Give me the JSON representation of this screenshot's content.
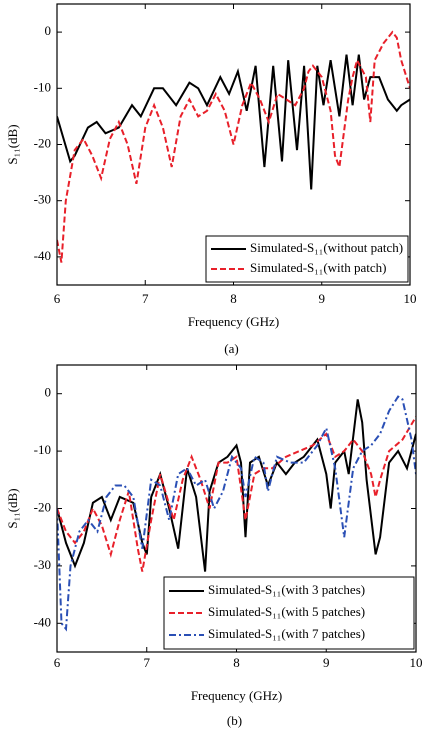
{
  "chart_data": [
    {
      "type": "line",
      "caption": "(a)",
      "xlabel": "Frequency (GHz)",
      "ylabel": "S₁₁(dB)",
      "xlim": [
        6,
        10
      ],
      "ylim": [
        -45,
        5
      ],
      "xticks": [
        6,
        7,
        8,
        9,
        10
      ],
      "yticks": [
        -40,
        -30,
        -20,
        -10,
        0
      ],
      "legend": "lower right",
      "series": [
        {
          "name": "Simulated-S₁₁(without patch)",
          "color": "#000000",
          "linestyle": "solid",
          "x": [
            6.0,
            6.15,
            6.2,
            6.35,
            6.45,
            6.55,
            6.7,
            6.85,
            6.95,
            7.1,
            7.2,
            7.35,
            7.5,
            7.6,
            7.7,
            7.85,
            7.95,
            8.05,
            8.15,
            8.25,
            8.35,
            8.45,
            8.55,
            8.62,
            8.72,
            8.8,
            8.88,
            8.95,
            9.02,
            9.1,
            9.2,
            9.28,
            9.35,
            9.42,
            9.48,
            9.55,
            9.65,
            9.75,
            9.85,
            9.9,
            10.0
          ],
          "values": [
            -15,
            -23,
            -22,
            -17,
            -16,
            -18,
            -17,
            -13,
            -15,
            -10,
            -10,
            -13,
            -9,
            -10,
            -13,
            -8,
            -11,
            -7,
            -14,
            -6,
            -24,
            -6,
            -23,
            -5,
            -21,
            -6,
            -28,
            -6,
            -13,
            -5,
            -15,
            -4,
            -13,
            -4,
            -12,
            -8,
            -8,
            -12,
            -14,
            -13,
            -12
          ]
        },
        {
          "name": "Simulated-S₁₁(with patch)",
          "color": "#e8202a",
          "linestyle": "dashed",
          "x": [
            6.0,
            6.05,
            6.1,
            6.2,
            6.3,
            6.4,
            6.5,
            6.6,
            6.7,
            6.8,
            6.9,
            7.0,
            7.1,
            7.2,
            7.3,
            7.4,
            7.5,
            7.6,
            7.7,
            7.8,
            7.9,
            8.0,
            8.1,
            8.2,
            8.3,
            8.4,
            8.5,
            8.6,
            8.7,
            8.8,
            8.85,
            8.9,
            8.95,
            9.0,
            9.05,
            9.1,
            9.15,
            9.2,
            9.3,
            9.35,
            9.4,
            9.5,
            9.55,
            9.6,
            9.7,
            9.8,
            9.85,
            9.9,
            10.0
          ],
          "values": [
            -37,
            -41,
            -30,
            -21,
            -19,
            -22,
            -26,
            -19,
            -16,
            -20,
            -27,
            -17,
            -13,
            -17,
            -24,
            -15,
            -12,
            -15,
            -14,
            -11,
            -14,
            -20,
            -13,
            -9,
            -12,
            -16,
            -11,
            -12,
            -13,
            -10,
            -7,
            -6,
            -7,
            -8,
            -11,
            -14,
            -22,
            -24,
            -12,
            -8,
            -5,
            -8,
            -16,
            -5,
            -2,
            0,
            -1,
            -5,
            -10
          ]
        }
      ]
    },
    {
      "type": "line",
      "caption": "(b)",
      "xlabel": "Frequency (GHz)",
      "ylabel": "S₁₁(dB)",
      "xlim": [
        6,
        10
      ],
      "ylim": [
        -45,
        5
      ],
      "xticks": [
        6,
        7,
        8,
        9,
        10
      ],
      "yticks": [
        -40,
        -30,
        -20,
        -10,
        0
      ],
      "legend": "lower right",
      "series": [
        {
          "name": "Simulated-S₁₁(with 3 patches)",
          "color": "#000000",
          "linestyle": "solid",
          "x": [
            6.0,
            6.1,
            6.2,
            6.3,
            6.4,
            6.5,
            6.6,
            6.7,
            6.85,
            6.95,
            7.0,
            7.05,
            7.15,
            7.25,
            7.35,
            7.45,
            7.55,
            7.65,
            7.7,
            7.8,
            7.9,
            8.0,
            8.05,
            8.1,
            8.15,
            8.25,
            8.35,
            8.45,
            8.55,
            8.65,
            8.75,
            8.9,
            9.0,
            9.05,
            9.1,
            9.2,
            9.25,
            9.35,
            9.4,
            9.45,
            9.55,
            9.6,
            9.7,
            9.8,
            9.9,
            10.0
          ],
          "values": [
            -20,
            -26,
            -30,
            -26,
            -19,
            -18,
            -22,
            -18,
            -19,
            -26,
            -28,
            -18,
            -14,
            -20,
            -27,
            -13,
            -18,
            -31,
            -17,
            -12,
            -11,
            -9,
            -12,
            -25,
            -12,
            -11,
            -16,
            -12,
            -14,
            -12,
            -11,
            -8,
            -14,
            -20,
            -12,
            -10,
            -14,
            -1,
            -5,
            -15,
            -28,
            -25,
            -12,
            -10,
            -13,
            -7
          ]
        },
        {
          "name": "Simulated-S₁₁(with 5 patches)",
          "color": "#e8202a",
          "linestyle": "dashed",
          "x": [
            6.0,
            6.1,
            6.2,
            6.3,
            6.4,
            6.5,
            6.6,
            6.7,
            6.8,
            6.9,
            6.95,
            7.05,
            7.15,
            7.3,
            7.4,
            7.5,
            7.6,
            7.7,
            7.8,
            7.9,
            8.0,
            8.1,
            8.2,
            8.3,
            8.4,
            8.55,
            8.7,
            8.85,
            9.0,
            9.1,
            9.2,
            9.3,
            9.4,
            9.5,
            9.55,
            9.6,
            9.7,
            9.85,
            10.0
          ],
          "values": [
            -20,
            -24,
            -26,
            -24,
            -20,
            -23,
            -28,
            -22,
            -17,
            -27,
            -31,
            -22,
            -14,
            -22,
            -15,
            -11,
            -15,
            -20,
            -12,
            -12,
            -11,
            -22,
            -14,
            -13,
            -13,
            -11,
            -10,
            -9,
            -7,
            -11,
            -10,
            -8,
            -10,
            -14,
            -18,
            -15,
            -10,
            -8,
            -4
          ]
        },
        {
          "name": "Simulated-S₁₁(with 7 patches)",
          "color": "#2a4fb5",
          "linestyle": "dashdot",
          "x": [
            6.0,
            6.05,
            6.1,
            6.15,
            6.25,
            6.35,
            6.45,
            6.55,
            6.65,
            6.75,
            6.85,
            6.95,
            7.05,
            7.15,
            7.25,
            7.35,
            7.45,
            7.55,
            7.65,
            7.75,
            7.85,
            7.95,
            8.05,
            8.1,
            8.2,
            8.3,
            8.35,
            8.45,
            8.6,
            8.75,
            8.9,
            9.0,
            9.1,
            9.2,
            9.3,
            9.4,
            9.5,
            9.6,
            9.7,
            9.8,
            9.85,
            9.95,
            10.0
          ],
          "values": [
            -20,
            -40,
            -41,
            -30,
            -24,
            -22,
            -24,
            -18,
            -16,
            -16,
            -18,
            -27,
            -15,
            -16,
            -22,
            -14,
            -13,
            -16,
            -15,
            -20,
            -17,
            -11,
            -13,
            -18,
            -11,
            -12,
            -17,
            -11,
            -12,
            -12,
            -9,
            -6,
            -13,
            -25,
            -13,
            -10,
            -9,
            -7,
            -3,
            -0.5,
            -1,
            -8,
            -14
          ]
        }
      ]
    }
  ]
}
